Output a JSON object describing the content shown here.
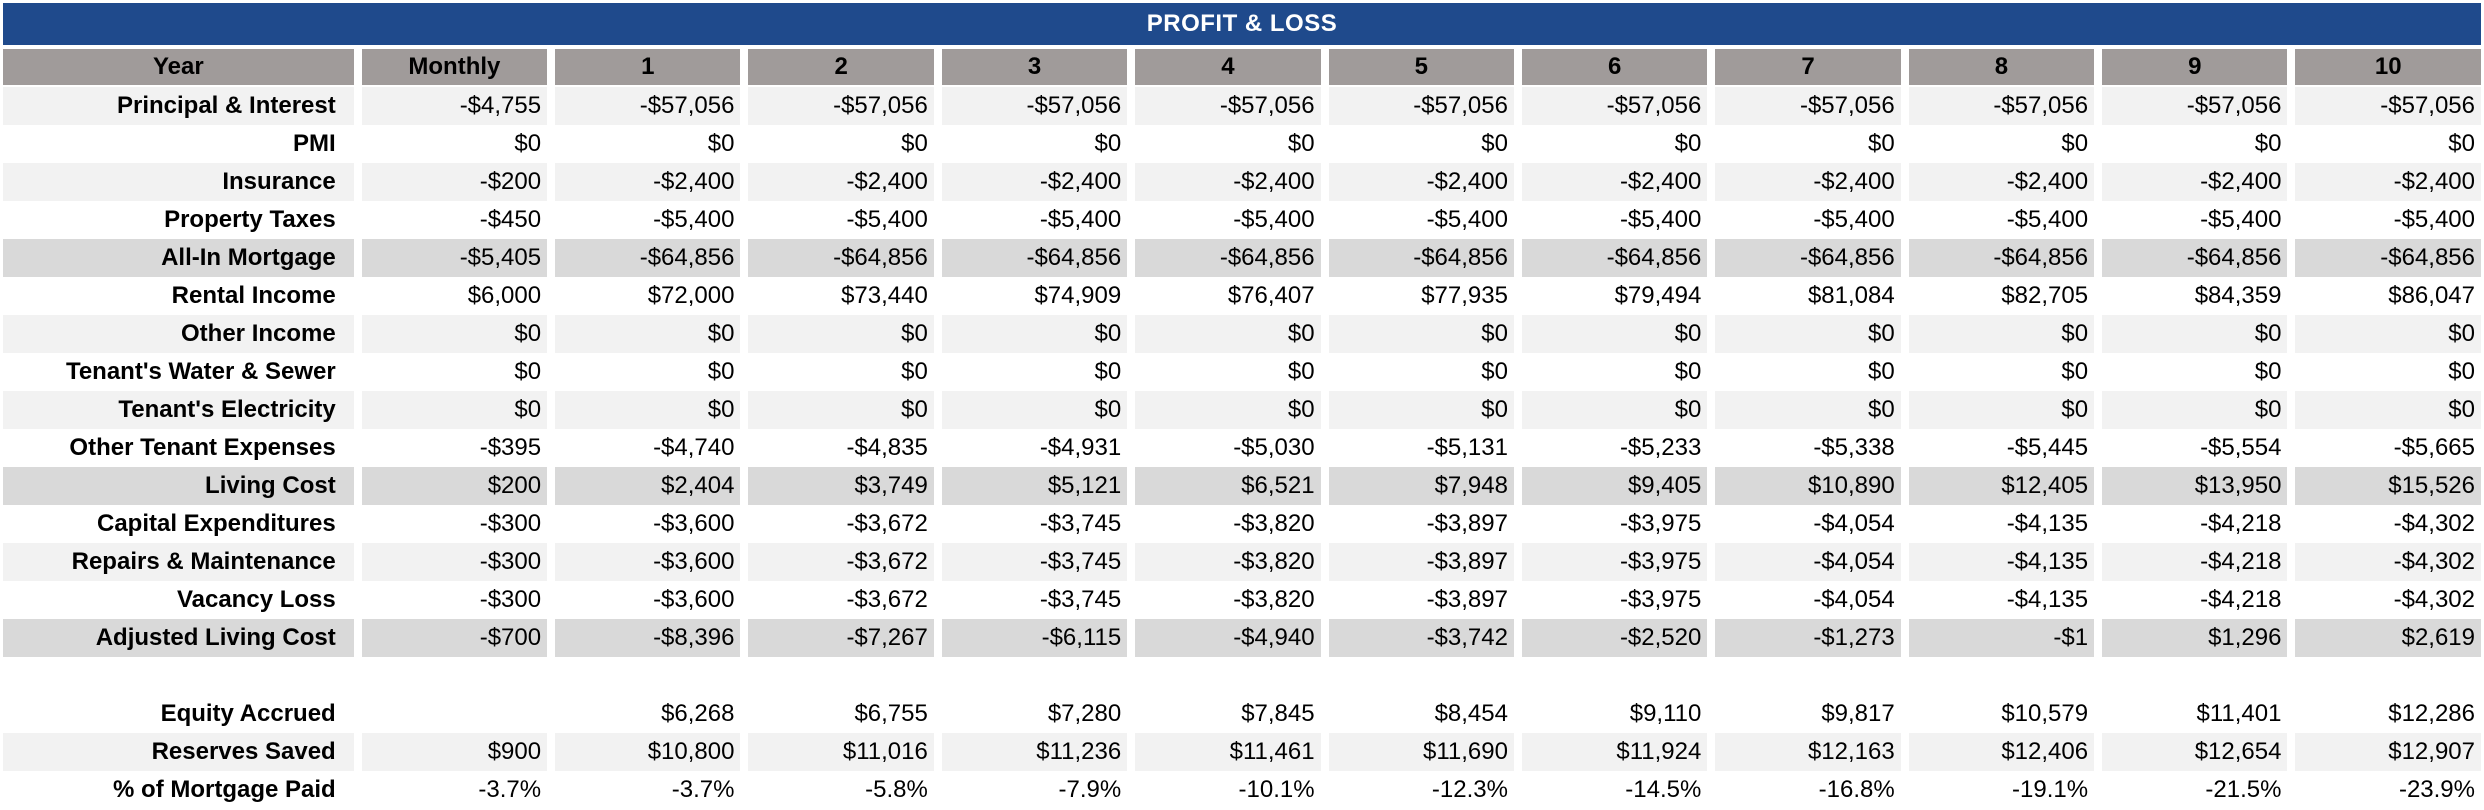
{
  "title": "PROFIT & LOSS",
  "header": [
    "Year",
    "Monthly",
    "1",
    "2",
    "3",
    "4",
    "5",
    "6",
    "7",
    "8",
    "9",
    "10"
  ],
  "rows": [
    {
      "label": "Principal & Interest",
      "style": "light",
      "values": [
        "-$4,755",
        "-$57,056",
        "-$57,056",
        "-$57,056",
        "-$57,056",
        "-$57,056",
        "-$57,056",
        "-$57,056",
        "-$57,056",
        "-$57,056",
        "-$57,056"
      ]
    },
    {
      "label": "PMI",
      "style": "white",
      "values": [
        "$0",
        "$0",
        "$0",
        "$0",
        "$0",
        "$0",
        "$0",
        "$0",
        "$0",
        "$0",
        "$0"
      ]
    },
    {
      "label": "Insurance",
      "style": "light",
      "values": [
        "-$200",
        "-$2,400",
        "-$2,400",
        "-$2,400",
        "-$2,400",
        "-$2,400",
        "-$2,400",
        "-$2,400",
        "-$2,400",
        "-$2,400",
        "-$2,400"
      ]
    },
    {
      "label": "Property Taxes",
      "style": "white",
      "values": [
        "-$450",
        "-$5,400",
        "-$5,400",
        "-$5,400",
        "-$5,400",
        "-$5,400",
        "-$5,400",
        "-$5,400",
        "-$5,400",
        "-$5,400",
        "-$5,400"
      ]
    },
    {
      "label": "All-In Mortgage",
      "style": "dark",
      "values": [
        "-$5,405",
        "-$64,856",
        "-$64,856",
        "-$64,856",
        "-$64,856",
        "-$64,856",
        "-$64,856",
        "-$64,856",
        "-$64,856",
        "-$64,856",
        "-$64,856"
      ]
    },
    {
      "label": "Rental Income",
      "style": "white",
      "values": [
        "$6,000",
        "$72,000",
        "$73,440",
        "$74,909",
        "$76,407",
        "$77,935",
        "$79,494",
        "$81,084",
        "$82,705",
        "$84,359",
        "$86,047"
      ]
    },
    {
      "label": "Other Income",
      "style": "light",
      "values": [
        "$0",
        "$0",
        "$0",
        "$0",
        "$0",
        "$0",
        "$0",
        "$0",
        "$0",
        "$0",
        "$0"
      ]
    },
    {
      "label": "Tenant's Water & Sewer",
      "style": "white",
      "values": [
        "$0",
        "$0",
        "$0",
        "$0",
        "$0",
        "$0",
        "$0",
        "$0",
        "$0",
        "$0",
        "$0"
      ]
    },
    {
      "label": "Tenant's Electricity",
      "style": "light",
      "values": [
        "$0",
        "$0",
        "$0",
        "$0",
        "$0",
        "$0",
        "$0",
        "$0",
        "$0",
        "$0",
        "$0"
      ]
    },
    {
      "label": "Other Tenant Expenses",
      "style": "white",
      "values": [
        "-$395",
        "-$4,740",
        "-$4,835",
        "-$4,931",
        "-$5,030",
        "-$5,131",
        "-$5,233",
        "-$5,338",
        "-$5,445",
        "-$5,554",
        "-$5,665"
      ]
    },
    {
      "label": "Living Cost",
      "style": "dark",
      "values": [
        "$200",
        "$2,404",
        "$3,749",
        "$5,121",
        "$6,521",
        "$7,948",
        "$9,405",
        "$10,890",
        "$12,405",
        "$13,950",
        "$15,526"
      ]
    },
    {
      "label": "Capital Expenditures",
      "style": "white",
      "values": [
        "-$300",
        "-$3,600",
        "-$3,672",
        "-$3,745",
        "-$3,820",
        "-$3,897",
        "-$3,975",
        "-$4,054",
        "-$4,135",
        "-$4,218",
        "-$4,302"
      ]
    },
    {
      "label": "Repairs & Maintenance",
      "style": "light",
      "values": [
        "-$300",
        "-$3,600",
        "-$3,672",
        "-$3,745",
        "-$3,820",
        "-$3,897",
        "-$3,975",
        "-$4,054",
        "-$4,135",
        "-$4,218",
        "-$4,302"
      ]
    },
    {
      "label": "Vacancy Loss",
      "style": "white",
      "values": [
        "-$300",
        "-$3,600",
        "-$3,672",
        "-$3,745",
        "-$3,820",
        "-$3,897",
        "-$3,975",
        "-$4,054",
        "-$4,135",
        "-$4,218",
        "-$4,302"
      ]
    },
    {
      "label": "Adjusted Living Cost",
      "style": "dark",
      "values": [
        "-$700",
        "-$8,396",
        "-$7,267",
        "-$6,115",
        "-$4,940",
        "-$3,742",
        "-$2,520",
        "-$1,273",
        "-$1",
        "$1,296",
        "$2,619"
      ]
    },
    {
      "label": "",
      "style": "blank",
      "values": [
        "",
        "",
        "",
        "",
        "",
        "",
        "",
        "",
        "",
        "",
        ""
      ]
    },
    {
      "label": "Equity Accrued",
      "style": "white",
      "values": [
        "",
        "$6,268",
        "$6,755",
        "$7,280",
        "$7,845",
        "$8,454",
        "$9,110",
        "$9,817",
        "$10,579",
        "$11,401",
        "$12,286"
      ]
    },
    {
      "label": "Reserves Saved",
      "style": "light",
      "values": [
        "$900",
        "$10,800",
        "$11,016",
        "$11,236",
        "$11,461",
        "$11,690",
        "$11,924",
        "$12,163",
        "$12,406",
        "$12,654",
        "$12,907"
      ]
    },
    {
      "label": "% of Mortgage Paid",
      "style": "white",
      "values": [
        "-3.7%",
        "-3.7%",
        "-5.8%",
        "-7.9%",
        "-10.1%",
        "-12.3%",
        "-14.5%",
        "-16.8%",
        "-19.1%",
        "-21.5%",
        "-23.9%"
      ]
    }
  ]
}
